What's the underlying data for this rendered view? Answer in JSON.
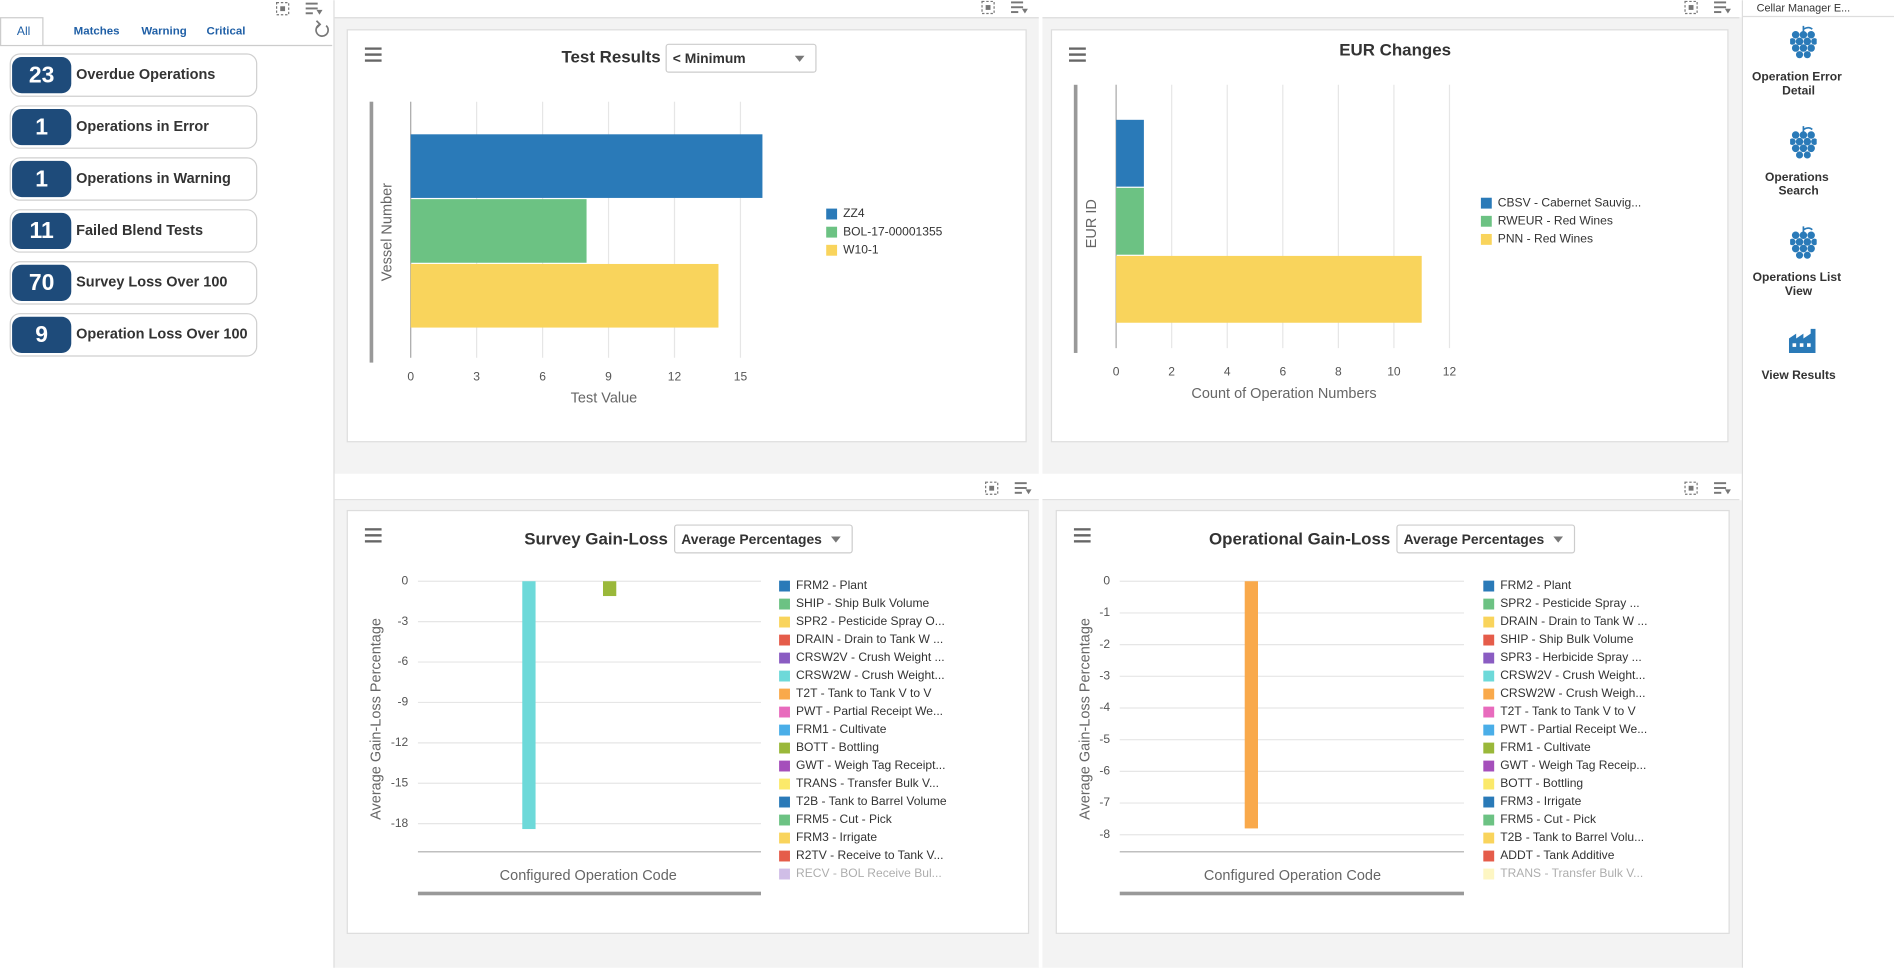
{
  "tabs": [
    "All",
    "Matches",
    "Warning",
    "Critical"
  ],
  "tiles": [
    {
      "count": 23,
      "label": "Overdue Operations"
    },
    {
      "count": 1,
      "label": "Operations in Error"
    },
    {
      "count": 1,
      "label": "Operations in Warning"
    },
    {
      "count": 11,
      "label": "Failed Blend Tests"
    },
    {
      "count": 70,
      "label": "Survey Loss Over 100"
    },
    {
      "count": 9,
      "label": "Operation Loss Over 100"
    }
  ],
  "side_panel": {
    "title": "Cellar Manager E...",
    "links": [
      "Operation Error Detail",
      "Operations Search",
      "Operations List View",
      "View Results"
    ]
  },
  "chart_data": [
    {
      "type": "hbar",
      "title": "Test Results",
      "dropdown": "< Minimum",
      "xlabel": "Test Value",
      "ylabel": "Vessel Number",
      "categories": [
        "ZZ4",
        "BOL-17-00001355",
        "W10-1"
      ],
      "values": [
        16,
        8,
        14
      ],
      "colors": [
        "#2a7ab8",
        "#6cc283",
        "#f9d45c"
      ],
      "xlim": [
        0,
        17
      ],
      "xticks": [
        0,
        3,
        6,
        9,
        12,
        15
      ],
      "grid": true
    },
    {
      "type": "hbar",
      "title": "EUR Changes",
      "xlabel": "Count of Operation Numbers",
      "ylabel": "EUR ID",
      "categories": [
        "CBSV - Cabernet Sauvig...",
        "RWEUR - Red Wines",
        "PNN - Red Wines"
      ],
      "values": [
        1,
        1,
        11
      ],
      "colors": [
        "#2a7ab8",
        "#6cc283",
        "#f9d45c"
      ],
      "xlim": [
        0,
        12.4
      ],
      "xticks": [
        0,
        2,
        4,
        6,
        8,
        10,
        12
      ],
      "grid": true
    },
    {
      "type": "vbar",
      "title": "Survey Gain-Loss",
      "dropdown": "Average Percentages",
      "xlabel": "Configured Operation Code",
      "ylabel": "Average Gain-Loss Percentage",
      "categories": [
        "FRM2 - Plant",
        "SHIP - Ship Bulk Volume",
        "SPR2 - Pesticide Spray O...",
        "DRAIN - Drain to Tank W ...",
        "CRSW2V - Crush Weight ...",
        "CRSW2W - Crush Weight...",
        "T2T - Tank to Tank V to V",
        "PWT - Partial Receipt We...",
        "FRM1 - Cultivate",
        "BOTT - Bottling",
        "GWT - Weigh Tag Receipt...",
        "TRANS - Transfer Bulk V...",
        "T2B - Tank to Barrel Volume",
        "FRM5 - Cut - Pick",
        "FRM3 - Irrigate",
        "R2TV - Receive to Tank V...",
        "RECV - BOL Receive Bul..."
      ],
      "values": [
        null,
        null,
        null,
        null,
        null,
        -18.4,
        null,
        null,
        null,
        -1.1,
        null,
        null,
        null,
        null,
        null,
        null,
        null
      ],
      "colors": [
        "#2a7ab8",
        "#6cc283",
        "#f9d45c",
        "#e55c4a",
        "#8a5cc2",
        "#6dd9d9",
        "#f9a94b",
        "#e86bbd",
        "#4aaee8",
        "#9ab83a",
        "#a54fbb",
        "#fbe96a",
        "#2a7ab8",
        "#6cc283",
        "#f9d45c",
        "#e55c4a",
        "#8a5cc2"
      ],
      "ylim": [
        -20,
        0
      ],
      "yticks": [
        0,
        -3,
        -6,
        -9,
        -12,
        -15,
        -18
      ],
      "grid": true
    },
    {
      "type": "vbar",
      "title": "Operational Gain-Loss",
      "dropdown": "Average Percentages",
      "xlabel": "Configured Operation Code",
      "ylabel": "Average Gain-Loss Percentage",
      "categories": [
        "FRM2 - Plant",
        "SPR2 - Pesticide Spray ...",
        "DRAIN - Drain to Tank W ...",
        "SHIP - Ship Bulk Volume",
        "SPR3 - Herbicide Spray ...",
        "CRSW2V - Crush Weight...",
        "CRSW2W - Crush Weigh...",
        "T2T - Tank to Tank V to V",
        "PWT - Partial Receipt We...",
        "FRM1 - Cultivate",
        "GWT - Weigh Tag Receip...",
        "BOTT - Bottling",
        "FRM3 - Irrigate",
        "FRM5 - Cut - Pick",
        "T2B - Tank to Barrel Volu...",
        "ADDT - Tank Additive",
        "TRANS - Transfer Bulk V..."
      ],
      "values": [
        null,
        null,
        null,
        null,
        null,
        null,
        -7.8,
        null,
        null,
        null,
        null,
        null,
        null,
        null,
        null,
        null,
        null
      ],
      "colors": [
        "#2a7ab8",
        "#6cc283",
        "#f9d45c",
        "#e55c4a",
        "#8a5cc2",
        "#6dd9d9",
        "#f9a94b",
        "#e86bbd",
        "#4aaee8",
        "#9ab83a",
        "#a54fbb",
        "#fbe96a",
        "#2a7ab8",
        "#6cc283",
        "#f9d45c",
        "#e55c4a",
        "#fbe96a"
      ],
      "ylim": [
        -8.5,
        0
      ],
      "yticks": [
        0,
        -1,
        -2,
        -3,
        -4,
        -5,
        -6,
        -7,
        -8
      ],
      "grid": true
    }
  ]
}
